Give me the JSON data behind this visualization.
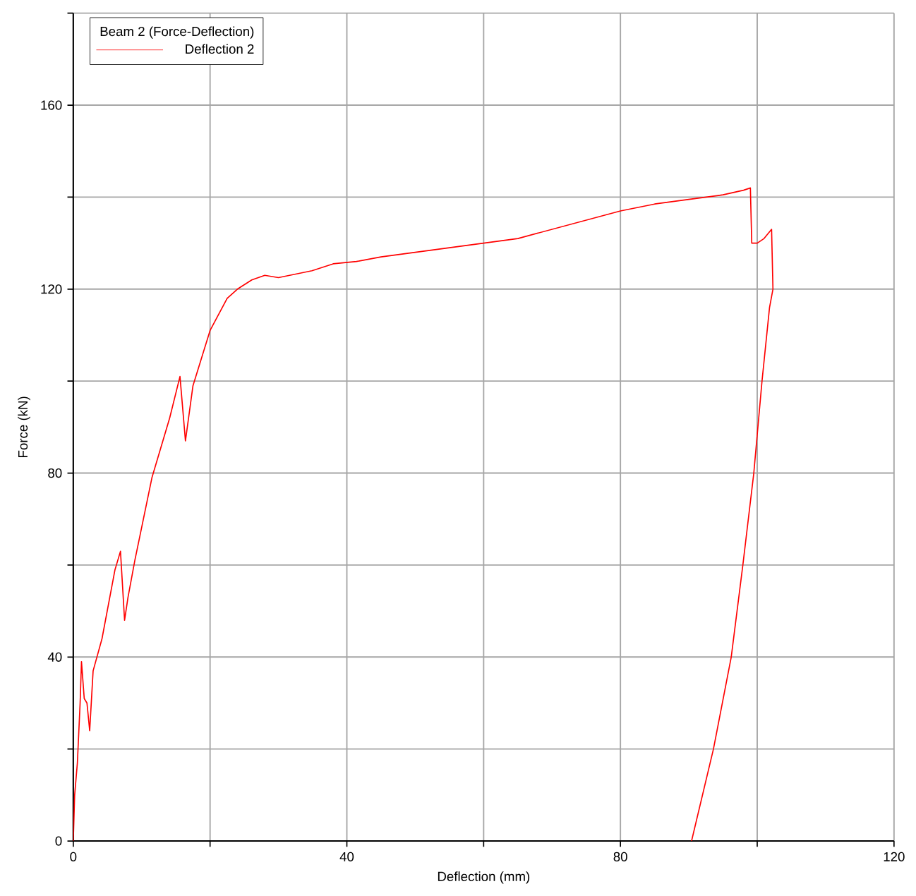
{
  "chart_data": {
    "type": "line",
    "xlabel": "Deflection (mm)",
    "ylabel": "Force (kN)",
    "legend_title": "Beam 2 (Force-Deflection)",
    "legend": "top left",
    "grid": true,
    "marker": "none",
    "line_style": "solid",
    "xlim": [
      0,
      120
    ],
    "ylim": [
      0,
      180
    ],
    "xticks": [
      0,
      {
        "value": 20,
        "label": null
      },
      40,
      {
        "value": 60,
        "label": null
      },
      80,
      {
        "value": 100,
        "label": null
      },
      120
    ],
    "yticks": [
      0,
      {
        "value": 20,
        "label": null
      },
      40,
      {
        "value": 60,
        "label": null
      },
      80,
      {
        "value": 100,
        "label": null
      },
      120,
      {
        "value": 140,
        "label": null
      },
      160,
      {
        "value": 180,
        "label": null
      }
    ],
    "series": [
      {
        "name": "Deflection 2",
        "color": "#ff0000",
        "x": [
          0,
          0.2,
          0.6,
          1.0,
          1.2,
          1.6,
          2.0,
          2.4,
          2.9,
          4.2,
          6.1,
          6.9,
          7.5,
          8.0,
          9.0,
          11.5,
          14.1,
          15.6,
          16.4,
          17.5,
          20,
          22.5,
          24,
          26.1,
          28,
          30,
          34.9,
          38,
          41.4,
          45,
          50,
          55,
          60,
          65,
          70,
          75,
          80,
          85,
          90,
          95,
          98,
          99,
          99.2,
          100,
          101,
          102.1,
          102.3,
          101.8,
          100.7,
          99.5,
          97.9,
          96.2,
          93.6,
          90.4
        ],
        "values": [
          0,
          10,
          17,
          30,
          39,
          31,
          30,
          24,
          37,
          44,
          59,
          63,
          48,
          53,
          61,
          79,
          92,
          101,
          87,
          99,
          111,
          118,
          120,
          122,
          123,
          122.5,
          124,
          125.5,
          126,
          127,
          128,
          129,
          130,
          131,
          133,
          135,
          137,
          138.5,
          139.5,
          140.5,
          141.5,
          142,
          130,
          130,
          131,
          133,
          120,
          116,
          100,
          80,
          60,
          40,
          20,
          0
        ]
      }
    ]
  }
}
